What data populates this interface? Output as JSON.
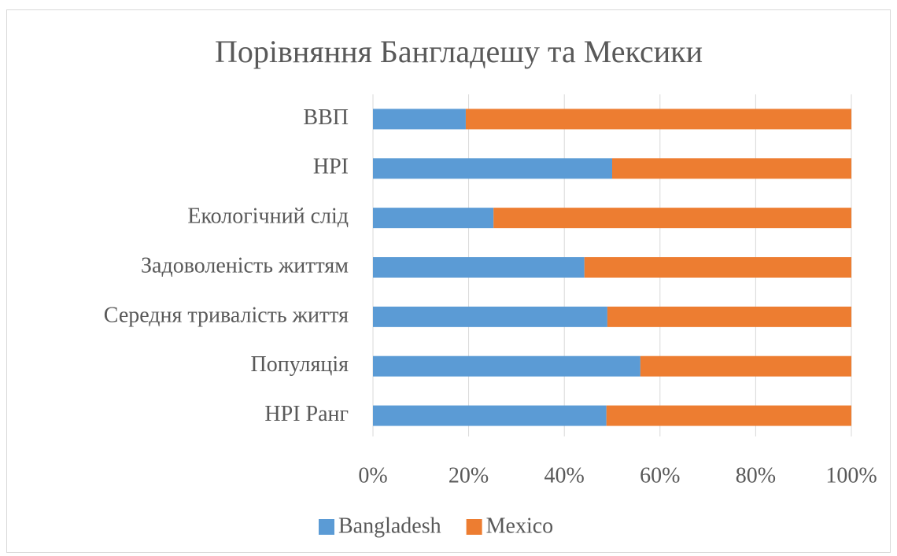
{
  "chart_data": {
    "type": "stacked-bar-horizontal",
    "title": "Порівняння Бангладешу та Мексики",
    "categories": [
      "ВВП",
      "HPI",
      "Екологічний слід",
      "Задоволеність життям",
      "Середня тривалість життя",
      "Популяція",
      "HPI Ранг"
    ],
    "series": [
      {
        "name": "Bangladesh",
        "color": "#5b9bd5",
        "values": [
          19.4,
          50,
          25.2,
          44.2,
          49.0,
          55.9,
          48.8
        ]
      },
      {
        "name": "Mexico",
        "color": "#ed7d31",
        "values": [
          80.6,
          50,
          74.8,
          55.8,
          51.0,
          44.1,
          51.2
        ]
      }
    ],
    "xlim": [
      0,
      100
    ],
    "xticks": [
      {
        "value": 0,
        "label": "0%"
      },
      {
        "value": 20,
        "label": "20%"
      },
      {
        "value": 40,
        "label": "40%"
      },
      {
        "value": 60,
        "label": "60%"
      },
      {
        "value": 80,
        "label": "80%"
      },
      {
        "value": 100,
        "label": "100%"
      }
    ],
    "grid": true,
    "legend": "bottom"
  }
}
